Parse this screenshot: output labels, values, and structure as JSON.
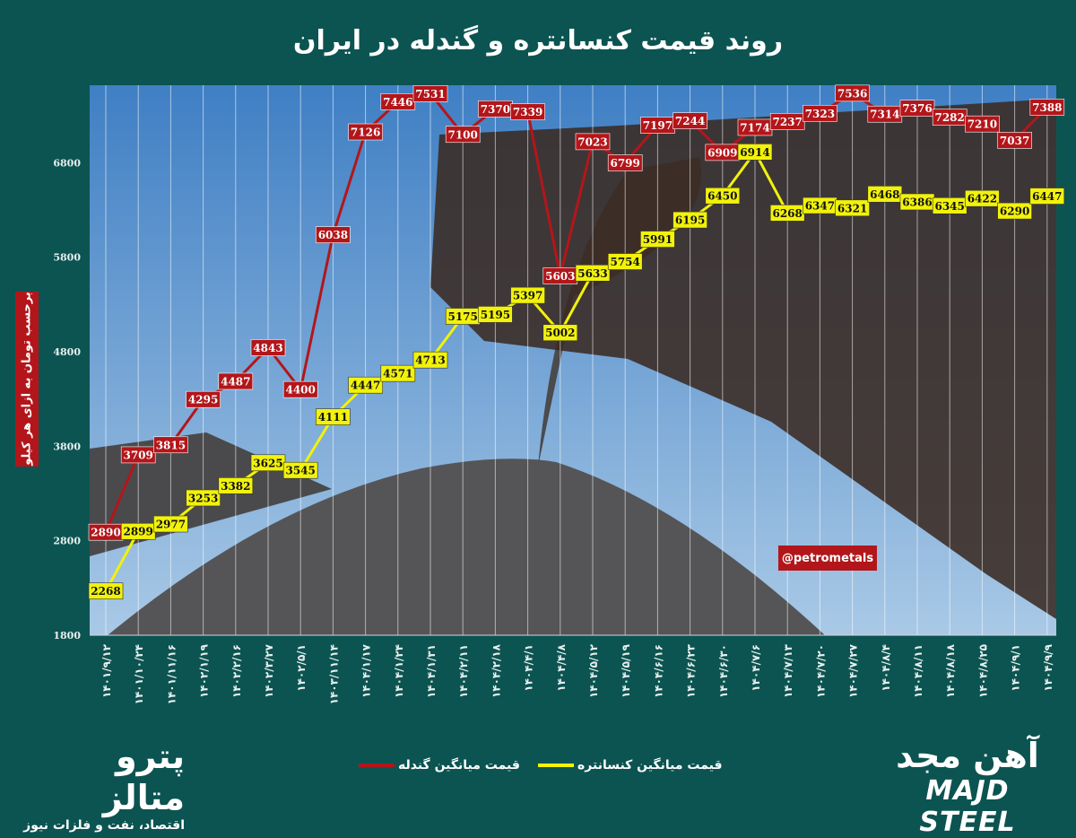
{
  "title": "روند قیمت کنسانتره و گندله در ایران",
  "watermark_handle": "@petrometals",
  "logos": {
    "left_name": "پترو متالز",
    "left_tagline": "اقتصاد، نفت و فلزات نیوز",
    "right_name_fa": "آهن مجد",
    "right_name_en": "MAJD STEEL"
  },
  "chart_data": {
    "type": "line",
    "title": "روند قیمت کنسانتره و گندله در ایران",
    "xlabel": "",
    "ylabel": "برحسب تومان به ازای هر کیلو",
    "ylim": [
      1800,
      7620
    ],
    "yticks": [
      1800,
      2800,
      3800,
      4800,
      5800,
      6800
    ],
    "grid": "vertical",
    "legend_placement": "bottom",
    "data_labels": true,
    "categories": [
      "۱۴۰۱/۹/۱۲",
      "۱۴۰۱/۱۰/۲۴",
      "۱۴۰۱/۱۱/۱۶",
      "۱۴۰۲/۱/۱۹",
      "۱۴۰۲/۲/۱۶",
      "۱۴۰۲/۳/۲۷",
      "۱۴۰۲/۵/۱",
      "۱۴۰۳/۱۱/۱۴",
      "۱۴۰۴/۱/۱۷",
      "۱۴۰۴/۱/۲۴",
      "۱۴۰۴/۱/۳۱",
      "۱۴۰۴/۲/۱۱",
      "۱۴۰۴/۲/۱۸",
      "۱۴۰۴/۴/۱",
      "۱۴۰۴/۴/۸",
      "۱۴۰۴/۵/۱۲",
      "۱۴۰۴/۵/۱۹",
      "۱۴۰۴/۶/۱۶",
      "۱۴۰۴/۶/۲۳",
      "۱۴۰۴/۶/۳۰",
      "۱۴۰۴/۷/۶",
      "۱۴۰۴/۷/۱۳",
      "۱۴۰۴/۷/۲۰",
      "۱۴۰۴/۷/۲۷",
      "۱۴۰۴/۸/۴",
      "۱۴۰۴/۸/۱۱",
      "۱۴۰۴/۸/۱۸",
      "۱۴۰۴/۸/۲۵",
      "۱۴۰۴/۹/۱",
      "۱۴۰۴/۹/۹"
    ],
    "series": [
      {
        "name": "قیمت میانگین گندله",
        "color": "#b3161a",
        "values": [
          2890,
          3709,
          3815,
          4295,
          4487,
          4843,
          4400,
          6038,
          7126,
          7446,
          7531,
          7100,
          7370,
          7339,
          5603,
          7023,
          6799,
          7197,
          7244,
          6909,
          7174,
          7237,
          7323,
          7536,
          7314,
          7376,
          7282,
          7210,
          7037,
          7388
        ]
      },
      {
        "name": "قیمت میانگین کنسانتره",
        "color": "#f2f20a",
        "values": [
          2268,
          2899,
          2977,
          3253,
          3382,
          3625,
          3545,
          4111,
          4447,
          4571,
          4713,
          5175,
          5195,
          5397,
          5002,
          5633,
          5754,
          5991,
          6195,
          6450,
          6914,
          6268,
          6347,
          6321,
          6468,
          6386,
          6345,
          6422,
          6290,
          6447
        ]
      }
    ]
  }
}
